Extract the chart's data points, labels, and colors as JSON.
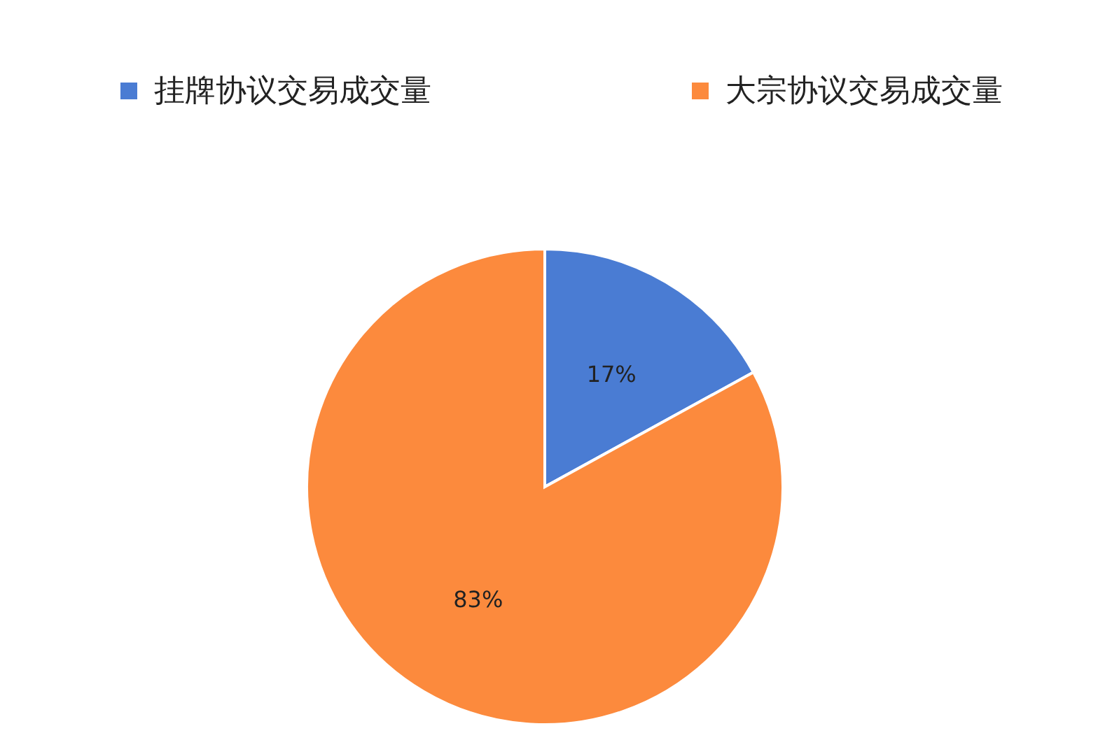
{
  "chart_data": {
    "type": "pie",
    "categories": [
      "挂牌协议交易成交量",
      "大宗协议交易成交量"
    ],
    "values": [
      17,
      83
    ],
    "colors": [
      "#4a7cd3",
      "#fc8a3d"
    ],
    "value_labels": [
      "17%",
      "83%"
    ],
    "legend": "top"
  }
}
